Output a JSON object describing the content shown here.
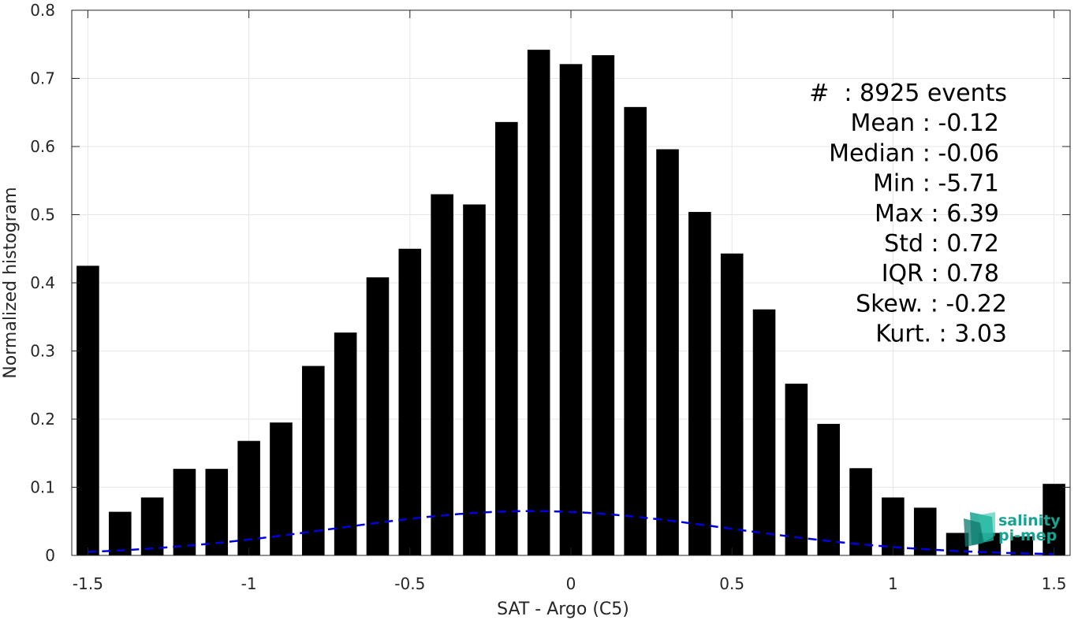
{
  "chart_data": {
    "type": "bar",
    "xlabel": "SAT - Argo (C5)",
    "ylabel": "Normalized histogram",
    "xlim": [
      -1.55,
      1.55
    ],
    "ylim": [
      0,
      0.8
    ],
    "x_ticks": [
      -1.5,
      -1,
      -0.5,
      0,
      0.5,
      1,
      1.5
    ],
    "x_tick_labels": [
      "-1.5",
      "-1",
      "-0.5",
      "0",
      "0.5",
      "1",
      "1.5"
    ],
    "y_ticks": [
      0,
      0.1,
      0.2,
      0.3,
      0.4,
      0.5,
      0.6,
      0.7,
      0.8
    ],
    "y_tick_labels": [
      "0",
      "0.1",
      "0.2",
      "0.3",
      "0.4",
      "0.5",
      "0.6",
      "0.7",
      "0.8"
    ],
    "grid": true,
    "bar_width": 0.07,
    "bar_color": "#000000",
    "bars": {
      "x": [
        -1.5,
        -1.4,
        -1.3,
        -1.2,
        -1.1,
        -1.0,
        -0.9,
        -0.8,
        -0.7,
        -0.6,
        -0.5,
        -0.4,
        -0.3,
        -0.2,
        -0.1,
        0.0,
        0.1,
        0.2,
        0.3,
        0.4,
        0.5,
        0.6,
        0.7,
        0.8,
        0.9,
        1.0,
        1.1,
        1.2,
        1.3,
        1.4,
        1.5
      ],
      "values": [
        0.425,
        0.064,
        0.085,
        0.127,
        0.127,
        0.168,
        0.195,
        0.278,
        0.327,
        0.408,
        0.45,
        0.53,
        0.515,
        0.636,
        0.742,
        0.721,
        0.734,
        0.658,
        0.596,
        0.504,
        0.443,
        0.361,
        0.252,
        0.193,
        0.128,
        0.085,
        0.07,
        0.033,
        0.033,
        0.028,
        0.105
      ]
    },
    "fit_curve": {
      "style": "dashed",
      "color": "#0000dd",
      "mean": -0.12,
      "std": 0.6137,
      "x_range": [
        -1.5,
        1.5
      ]
    },
    "stats": [
      {
        "label": "#  : 8925 events",
        "offset": 10
      },
      {
        "label": "Mean : -0.12",
        "offset": 0
      },
      {
        "label": "Median : -0.06",
        "offset": 0
      },
      {
        "label": "Min : -5.71",
        "offset": 0
      },
      {
        "label": "Max : 6.39",
        "offset": 0
      },
      {
        "label": "Std : 0.72",
        "offset": 0
      },
      {
        "label": "IQR : 0.78",
        "offset": 0
      },
      {
        "label": "Skew. : -0.22",
        "offset": 10
      },
      {
        "label": "Kurt. : 3.03",
        "offset": 10
      }
    ]
  },
  "watermark": {
    "line1": "salinity",
    "line2": "pi-mep",
    "color": "#17a391"
  }
}
